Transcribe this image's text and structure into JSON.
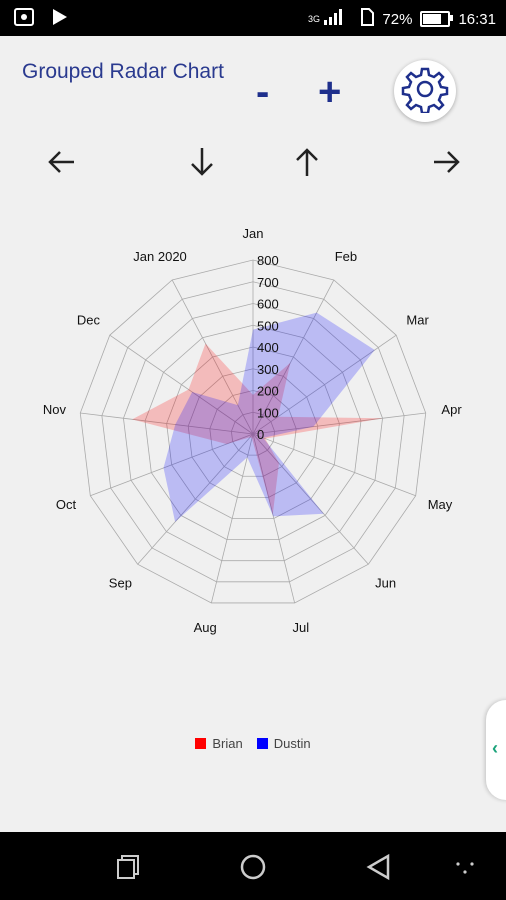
{
  "status": {
    "battery": "72%",
    "time": "16:31",
    "network": "3G"
  },
  "header": {
    "title": "Grouped Radar Chart",
    "zoom_out": "-",
    "zoom_in": "+"
  },
  "chart_data": {
    "type": "radar",
    "categories": [
      "Jan",
      "Feb",
      "Mar",
      "Apr",
      "May",
      "Jun",
      "Jul",
      "Aug",
      "Sep",
      "Oct",
      "Nov",
      "Dec",
      "Jan 2020"
    ],
    "rlim": [
      0,
      800
    ],
    "ticks": [
      "0",
      "100",
      "200",
      "300",
      "400",
      "500",
      "600",
      "700",
      "800"
    ],
    "series": [
      {
        "name": "Brian",
        "color": "#ff0000",
        "values": [
          180,
          370,
          140,
          600,
          60,
          180,
          380,
          20,
          20,
          130,
          560,
          360,
          470
        ]
      },
      {
        "name": "Dustin",
        "color": "#0000ff",
        "values": [
          480,
          630,
          680,
          280,
          50,
          490,
          390,
          110,
          540,
          440,
          360,
          340,
          150
        ]
      }
    ]
  },
  "legend": {
    "brian": "Brian",
    "dustin": "Dustin"
  }
}
